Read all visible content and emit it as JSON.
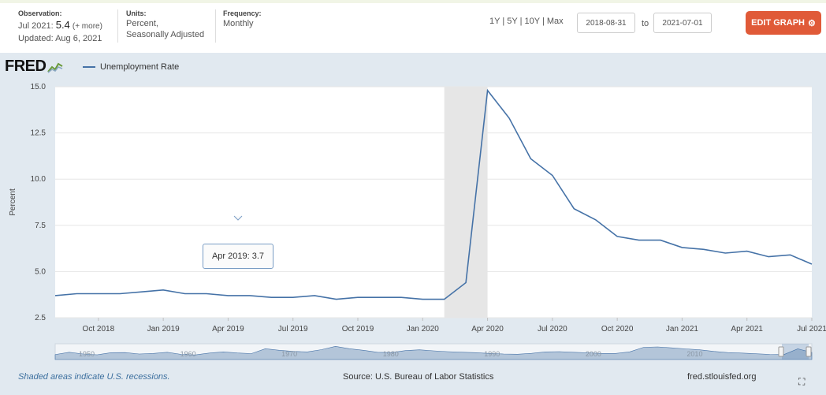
{
  "header": {
    "observation_label": "Observation:",
    "observation_period": "Jul 2021:",
    "observation_value": "5.4",
    "observation_more": "(+ more)",
    "updated": "Updated: Aug 6, 2021",
    "units_label": "Units:",
    "units_line1": "Percent,",
    "units_line2": "Seasonally Adjusted",
    "frequency_label": "Frequency:",
    "frequency_value": "Monthly",
    "range_1y": "1Y",
    "range_5y": "5Y",
    "range_10y": "10Y",
    "range_max": "Max",
    "range_sep": "|",
    "start_date": "2018-08-31",
    "to_label": "to",
    "end_date": "2021-07-01",
    "edit_label": "EDIT GRAPH"
  },
  "logo_text": "FRED",
  "footer": {
    "recession_note": "Shaded areas indicate U.S. recessions.",
    "source": "Source: U.S. Bureau of Labor Statistics",
    "site": "fred.stlouisfed.org"
  },
  "tooltip": {
    "period": "Apr 2019:",
    "value": "3.7"
  },
  "colors": {
    "line": "#4572a7",
    "recession": "#e6e6e6",
    "panel": "#e1e9f0",
    "edit_button": "#e05a38"
  },
  "chart_data": {
    "type": "line",
    "ylabel": "Percent",
    "ylim": [
      2.5,
      15.0
    ],
    "yticks": [
      "2.5",
      "5.0",
      "7.5",
      "10.0",
      "12.5",
      "15.0"
    ],
    "xticks": [
      "Oct 2018",
      "Jan 2019",
      "Apr 2019",
      "Jul 2019",
      "Oct 2019",
      "Jan 2020",
      "Apr 2020",
      "Jul 2020",
      "Oct 2020",
      "Jan 2021",
      "Apr 2021",
      "Jul 2021"
    ],
    "recession": [
      "2020-02",
      "2020-04"
    ],
    "series": [
      {
        "name": "Unemployment Rate",
        "x": [
          "2018-08",
          "2018-09",
          "2018-10",
          "2018-11",
          "2018-12",
          "2019-01",
          "2019-02",
          "2019-03",
          "2019-04",
          "2019-05",
          "2019-06",
          "2019-07",
          "2019-08",
          "2019-09",
          "2019-10",
          "2019-11",
          "2019-12",
          "2020-01",
          "2020-02",
          "2020-03",
          "2020-04",
          "2020-05",
          "2020-06",
          "2020-07",
          "2020-08",
          "2020-09",
          "2020-10",
          "2020-11",
          "2020-12",
          "2021-01",
          "2021-02",
          "2021-03",
          "2021-04",
          "2021-05",
          "2021-06",
          "2021-07"
        ],
        "values": [
          3.7,
          3.8,
          3.8,
          3.8,
          3.9,
          4.0,
          3.8,
          3.8,
          3.7,
          3.7,
          3.6,
          3.6,
          3.7,
          3.5,
          3.6,
          3.6,
          3.6,
          3.5,
          3.5,
          4.4,
          14.8,
          13.3,
          11.1,
          10.2,
          8.4,
          7.8,
          6.9,
          6.7,
          6.7,
          6.3,
          6.2,
          6.0,
          6.1,
          5.8,
          5.9,
          5.4
        ]
      }
    ],
    "navigator": {
      "labels": [
        "1950",
        "1960",
        "1970",
        "1980",
        "1990",
        "2000",
        "2010"
      ],
      "values": [
        3.8,
        5.5,
        4.2,
        3.6,
        5.2,
        5.3,
        4.2,
        4.6,
        5.5,
        3.9,
        3.5,
        4.9,
        5.8,
        5.0,
        4.5,
        8.2,
        7.0,
        6.2,
        5.8,
        7.5,
        10.0,
        8.2,
        7.0,
        5.5,
        5.3,
        6.8,
        7.4,
        6.6,
        6.0,
        5.6,
        5.2,
        4.6,
        4.2,
        4.0,
        4.7,
        5.8,
        6.0,
        5.5,
        5.1,
        4.6,
        4.6,
        5.8,
        9.3,
        9.6,
        8.9,
        8.1,
        7.4,
        6.2,
        5.3,
        4.9,
        4.4,
        3.9,
        3.7,
        8.1,
        5.4
      ]
    }
  }
}
